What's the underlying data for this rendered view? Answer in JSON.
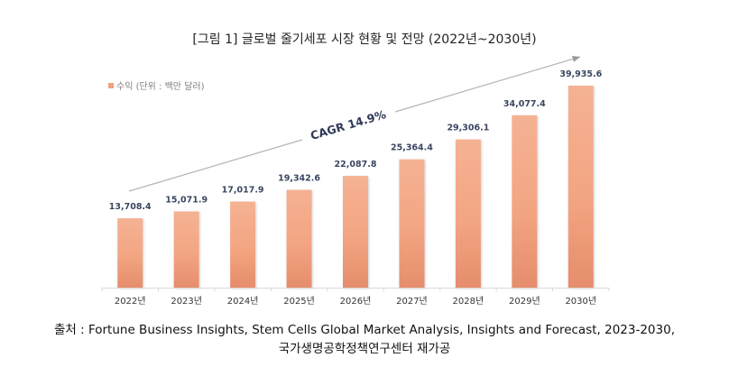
{
  "chart_data": {
    "type": "bar",
    "title": "[그림 1] 글로벌 줄기세포 시장 현황 및 전망 (2022년~2030년)",
    "legend": [
      {
        "name": "수익 (단위 : 백만 달러)",
        "color": "#f0a07e"
      }
    ],
    "legend_position": "top-left",
    "categories": [
      "2022년",
      "2023년",
      "2024년",
      "2025년",
      "2026년",
      "2027년",
      "2028년",
      "2029년",
      "2030년"
    ],
    "values": [
      13708.4,
      15071.9,
      17017.9,
      19342.6,
      22087.8,
      25364.4,
      29306.1,
      34077.4,
      39935.6
    ],
    "labels": [
      "13,708.4",
      "15,071.9",
      "17,017.9",
      "19,342.6",
      "22,087.8",
      "25,364.4",
      "29,306.1",
      "34,077.4",
      "39,935.6"
    ],
    "xlabel": "",
    "ylabel": "",
    "ylim": [
      0,
      39935.6
    ],
    "grid": false,
    "annotation": "CAGR 14.9%",
    "bar_color": "#f0a07e"
  },
  "source": {
    "line1": "출처 : Fortune Business Insights, Stem Cells Global Market Analysis, Insights and Forecast, 2023-2030,",
    "line2": "국가생명공학정책연구센터 재가공"
  }
}
